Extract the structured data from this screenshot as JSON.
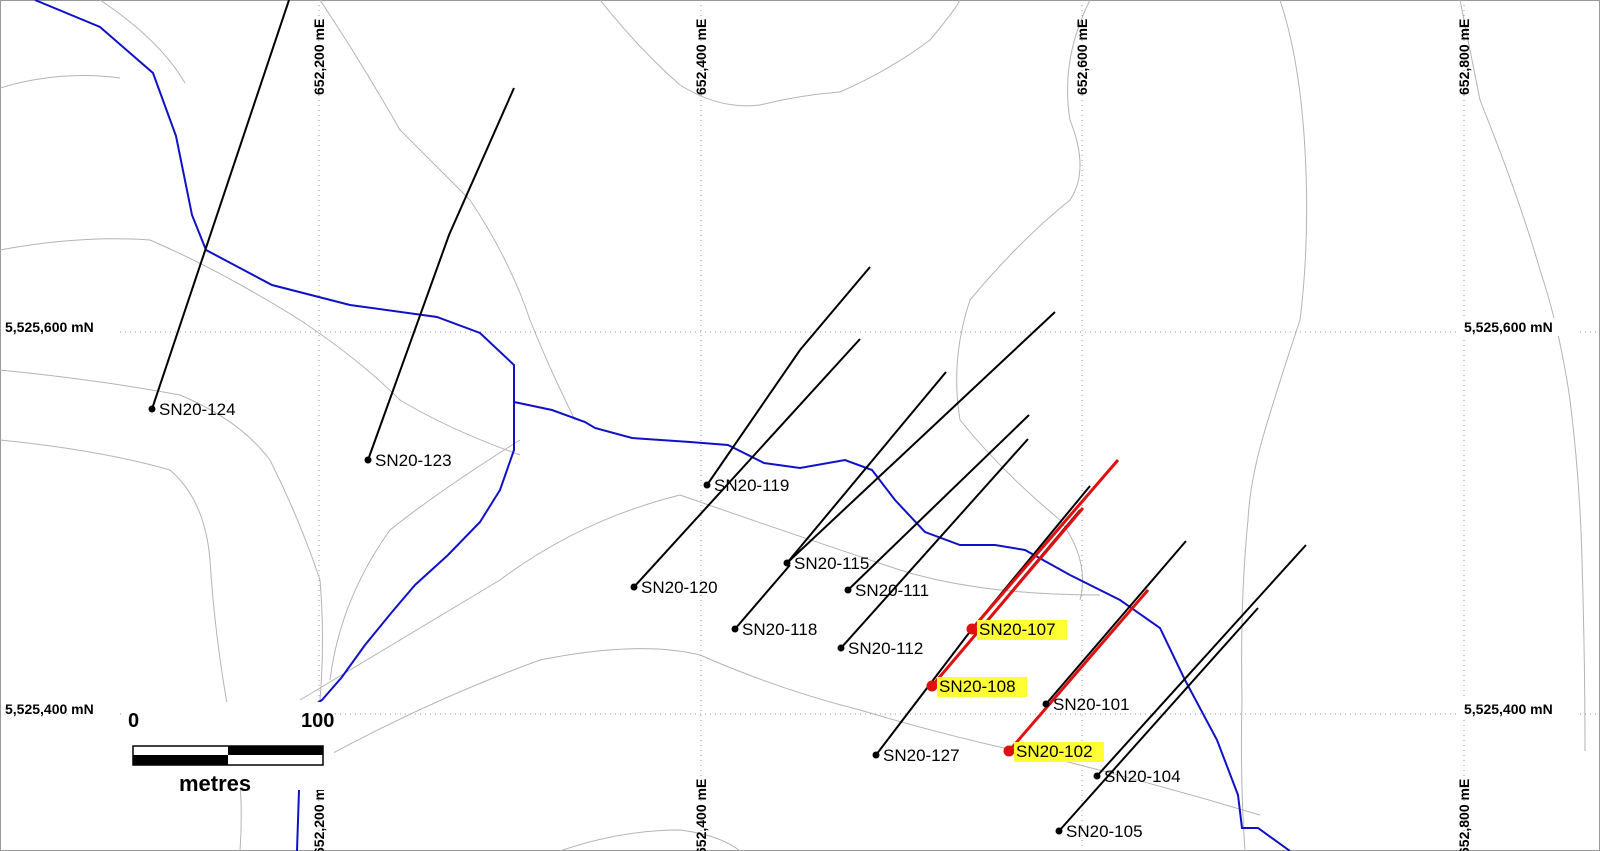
{
  "map": {
    "easting_labels": [
      "652,200 mE",
      "652,400 mE",
      "652,600 mE",
      "652,800 mE"
    ],
    "northing_labels": [
      "5,525,600 mN",
      "5,525,400 mN"
    ],
    "scale_bar": {
      "start": "0",
      "end": "100",
      "unit": "metres"
    },
    "colors": {
      "stream": "#1010c8",
      "drill_trace": "#000000",
      "highlight_trace": "#e01010",
      "highlight_bg": "#ffff33",
      "contour": "#b4b4b4",
      "grid": "#999999"
    },
    "drill_holes": [
      {
        "id": "SN20-124",
        "highlight": false
      },
      {
        "id": "SN20-123",
        "highlight": false
      },
      {
        "id": "SN20-119",
        "highlight": false
      },
      {
        "id": "SN20-120",
        "highlight": false
      },
      {
        "id": "SN20-115",
        "highlight": false
      },
      {
        "id": "SN20-111",
        "highlight": false
      },
      {
        "id": "SN20-118",
        "highlight": false
      },
      {
        "id": "SN20-112",
        "highlight": false
      },
      {
        "id": "SN20-107",
        "highlight": true
      },
      {
        "id": "SN20-108",
        "highlight": true
      },
      {
        "id": "SN20-101",
        "highlight": false
      },
      {
        "id": "SN20-127",
        "highlight": false
      },
      {
        "id": "SN20-102",
        "highlight": true
      },
      {
        "id": "SN20-104",
        "highlight": false
      },
      {
        "id": "SN20-105",
        "highlight": false
      }
    ]
  }
}
